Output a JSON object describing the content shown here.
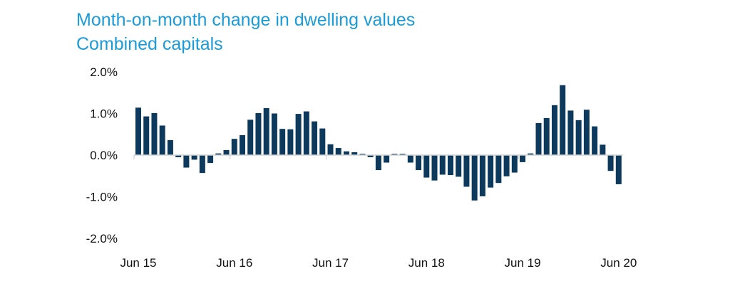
{
  "chart_data": {
    "type": "bar",
    "title": "Month-on-month change in dwelling values",
    "subtitle": "Combined capitals",
    "xlabel": "",
    "ylabel": "",
    "ylim": [
      -2.0,
      2.0
    ],
    "yticks": [
      "2.0%",
      "1.0%",
      "0.0%",
      "-1.0%",
      "-2.0%"
    ],
    "ytick_values": [
      2.0,
      1.0,
      0.0,
      -1.0,
      -2.0
    ],
    "xtick_labels": [
      "Jun 15",
      "Jun 16",
      "Jun 17",
      "Jun 18",
      "Jun 19",
      "Jun 20"
    ],
    "grid": false,
    "bar_color": "#0d3a5c",
    "title_color": "#1b9bd7",
    "categories": [
      "Jun 15",
      "Jul 15",
      "Aug 15",
      "Sep 15",
      "Oct 15",
      "Nov 15",
      "Dec 15",
      "Jan 16",
      "Feb 16",
      "Mar 16",
      "Apr 16",
      "May 16",
      "Jun 16",
      "Jul 16",
      "Aug 16",
      "Sep 16",
      "Oct 16",
      "Nov 16",
      "Dec 16",
      "Jan 17",
      "Feb 17",
      "Mar 17",
      "Apr 17",
      "May 17",
      "Jun 17",
      "Jul 17",
      "Aug 17",
      "Sep 17",
      "Oct 17",
      "Nov 17",
      "Dec 17",
      "Jan 18",
      "Feb 18",
      "Mar 18",
      "Apr 18",
      "May 18",
      "Jun 18",
      "Jul 18",
      "Aug 18",
      "Sep 18",
      "Oct 18",
      "Nov 18",
      "Dec 18",
      "Jan 19",
      "Feb 19",
      "Mar 19",
      "Apr 19",
      "May 19",
      "Jun 19",
      "Jul 19",
      "Aug 19",
      "Sep 19",
      "Oct 19",
      "Nov 19",
      "Dec 19",
      "Jan 20",
      "Feb 20",
      "Mar 20",
      "Apr 20",
      "May 20",
      "Jun 20"
    ],
    "values": [
      1.14,
      0.93,
      1.01,
      0.71,
      0.36,
      -0.05,
      -0.3,
      -0.11,
      -0.43,
      -0.19,
      0.04,
      0.12,
      0.39,
      0.48,
      0.85,
      1.01,
      1.13,
      1.0,
      0.63,
      0.62,
      0.99,
      1.05,
      0.81,
      0.64,
      0.26,
      0.17,
      0.09,
      0.07,
      0.03,
      -0.05,
      -0.36,
      -0.18,
      0.03,
      0.03,
      -0.18,
      -0.36,
      -0.54,
      -0.61,
      -0.47,
      -0.48,
      -0.52,
      -0.76,
      -1.09,
      -0.99,
      -0.78,
      -0.67,
      -0.51,
      -0.42,
      -0.17,
      0.04,
      0.77,
      0.89,
      1.2,
      1.68,
      1.07,
      0.84,
      1.09,
      0.69,
      0.25,
      -0.38,
      -0.7
    ]
  }
}
